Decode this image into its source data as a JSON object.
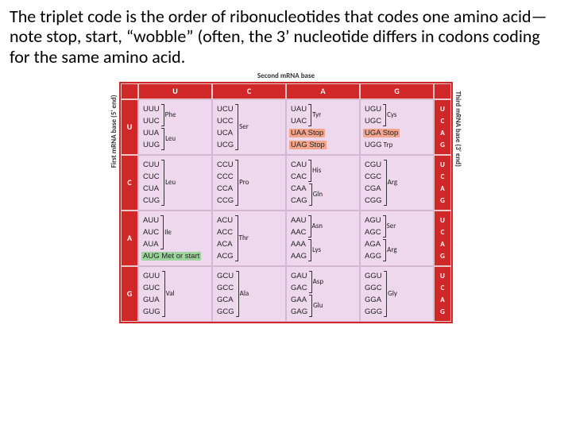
{
  "intro_text": "The triplet code is the order of ribonucleotides that codes one amino acid—note stop, start, “wobble” (often, the 3’ nucleotide differs in codons coding for the same amino acid.",
  "titles": {
    "top": "Second mRNA base",
    "left": "First mRNA base (5' end)",
    "right": "Third mRNA base (3' end)"
  },
  "bases": [
    "U",
    "C",
    "A",
    "G"
  ],
  "colors": {
    "header_bg": "#d02828",
    "cell_bg": "#edd8ed",
    "cell_border": "#d4b8d4",
    "stop_bg": "#f5a58c",
    "start_bg": "#9dd49d"
  },
  "table": {
    "U": {
      "U": [
        {
          "codons": [
            "UUU",
            "UUC"
          ],
          "aa": "Phe"
        },
        {
          "codons": [
            "UUA",
            "UUG"
          ],
          "aa": "Leu"
        }
      ],
      "C": [
        {
          "codons": [
            "UCU",
            "UCC",
            "UCA",
            "UCG"
          ],
          "aa": "Ser"
        }
      ],
      "A": [
        {
          "codons": [
            "UAU",
            "UAC"
          ],
          "aa": "Tyr"
        },
        {
          "codons": [
            "UAA"
          ],
          "aa": "Stop",
          "hl": "stop"
        },
        {
          "codons": [
            "UAG"
          ],
          "aa": "Stop",
          "hl": "stop"
        }
      ],
      "G": [
        {
          "codons": [
            "UGU",
            "UGC"
          ],
          "aa": "Cys"
        },
        {
          "codons": [
            "UGA"
          ],
          "aa": "Stop",
          "hl": "stop"
        },
        {
          "codons": [
            "UGG"
          ],
          "aa": "Trp"
        }
      ]
    },
    "C": {
      "U": [
        {
          "codons": [
            "CUU",
            "CUC",
            "CUA",
            "CUG"
          ],
          "aa": "Leu"
        }
      ],
      "C": [
        {
          "codons": [
            "CCU",
            "CCC",
            "CCA",
            "CCG"
          ],
          "aa": "Pro"
        }
      ],
      "A": [
        {
          "codons": [
            "CAU",
            "CAC"
          ],
          "aa": "His"
        },
        {
          "codons": [
            "CAA",
            "CAG"
          ],
          "aa": "Gln"
        }
      ],
      "G": [
        {
          "codons": [
            "CGU",
            "CGC",
            "CGA",
            "CGG"
          ],
          "aa": "Arg"
        }
      ]
    },
    "A": {
      "U": [
        {
          "codons": [
            "AUU",
            "AUC",
            "AUA"
          ],
          "aa": "Ile"
        },
        {
          "codons": [
            "AUG"
          ],
          "aa": "Met or start",
          "hl": "start"
        }
      ],
      "C": [
        {
          "codons": [
            "ACU",
            "ACC",
            "ACA",
            "ACG"
          ],
          "aa": "Thr"
        }
      ],
      "A": [
        {
          "codons": [
            "AAU",
            "AAC"
          ],
          "aa": "Asn"
        },
        {
          "codons": [
            "AAA",
            "AAG"
          ],
          "aa": "Lys"
        }
      ],
      "G": [
        {
          "codons": [
            "AGU",
            "AGC"
          ],
          "aa": "Ser"
        },
        {
          "codons": [
            "AGA",
            "AGG"
          ],
          "aa": "Arg"
        }
      ]
    },
    "G": {
      "U": [
        {
          "codons": [
            "GUU",
            "GUC",
            "GUA",
            "GUG"
          ],
          "aa": "Val"
        }
      ],
      "C": [
        {
          "codons": [
            "GCU",
            "GCC",
            "GCA",
            "GCG"
          ],
          "aa": "Ala"
        }
      ],
      "A": [
        {
          "codons": [
            "GAU",
            "GAC"
          ],
          "aa": "Asp"
        },
        {
          "codons": [
            "GAA",
            "GAG"
          ],
          "aa": "Glu"
        }
      ],
      "G": [
        {
          "codons": [
            "GGU",
            "GGC",
            "GGA",
            "GGG"
          ],
          "aa": "Gly"
        }
      ]
    }
  }
}
